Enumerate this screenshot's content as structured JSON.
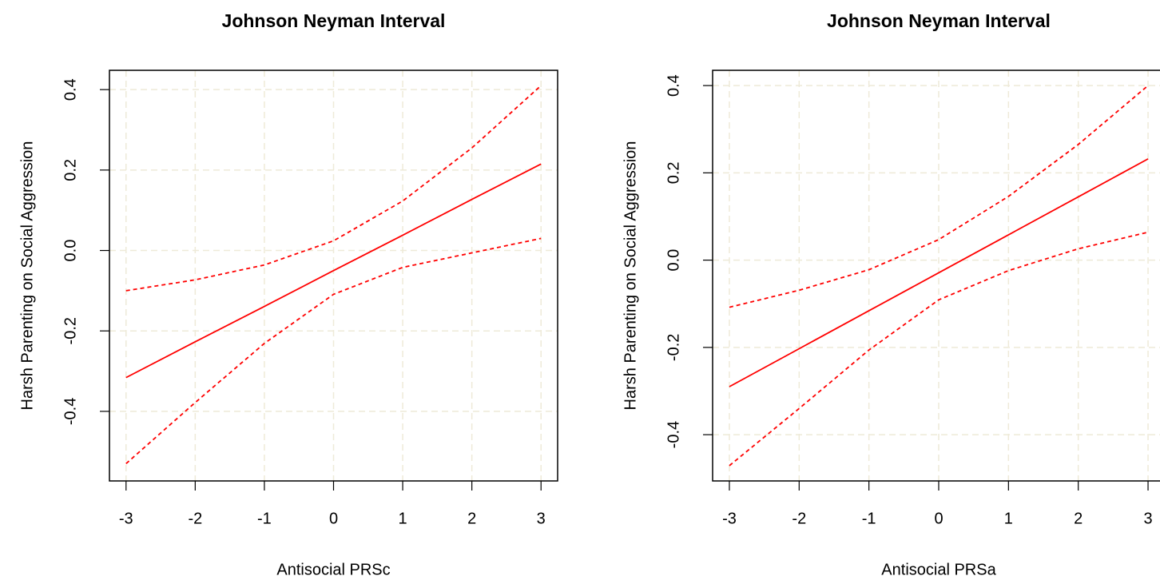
{
  "chart_data": [
    {
      "type": "line",
      "title": "Johnson Neyman Interval",
      "xlabel": "Antisocial PRSc",
      "ylabel": "Harsh Parenting on Social Aggression",
      "x": [
        -3,
        -2,
        -1,
        0,
        1,
        2,
        3
      ],
      "series": [
        {
          "color": "#ff0000",
          "linestyle": "solid",
          "values": [
            -0.316,
            -0.227,
            -0.139,
            -0.05,
            0.038,
            0.127,
            0.215
          ]
        },
        {
          "color": "#ff0000",
          "linestyle": "dashed",
          "values": [
            -0.1,
            -0.073,
            -0.036,
            0.024,
            0.123,
            0.255,
            0.41
          ]
        },
        {
          "color": "#ff0000",
          "linestyle": "dashed",
          "values": [
            -0.53,
            -0.378,
            -0.231,
            -0.109,
            -0.042,
            -0.006,
            0.03
          ]
        }
      ],
      "xlim": [
        -3.24,
        3.24
      ],
      "xticks": [
        -3,
        -2,
        -1,
        0,
        1,
        2,
        3
      ],
      "ylim": [
        -0.573,
        0.448
      ],
      "yticks": [
        -0.4,
        -0.2,
        {
          "value": 0,
          "label": "0.0"
        },
        0.2,
        0.4
      ],
      "grid": true
    },
    {
      "type": "line",
      "title": "Johnson Neyman Interval",
      "xlabel": "Antisocial PRSa",
      "ylabel": "Harsh Parenting on Social Aggression",
      "x": [
        -3,
        -2,
        -1,
        0,
        1,
        2,
        3
      ],
      "series": [
        {
          "color": "#ff0000",
          "linestyle": "solid",
          "values": [
            -0.29,
            -0.203,
            -0.116,
            -0.029,
            0.058,
            0.145,
            0.232
          ]
        },
        {
          "color": "#ff0000",
          "linestyle": "dashed",
          "values": [
            -0.108,
            -0.069,
            -0.022,
            0.047,
            0.146,
            0.265,
            0.4
          ]
        },
        {
          "color": "#ff0000",
          "linestyle": "dashed",
          "values": [
            -0.471,
            -0.34,
            -0.206,
            -0.091,
            -0.024,
            0.026,
            0.064
          ]
        }
      ],
      "xlim": [
        -3.24,
        3.24
      ],
      "xticks": [
        -3,
        -2,
        -1,
        0,
        1,
        2,
        3
      ],
      "ylim": [
        -0.506,
        0.435
      ],
      "yticks": [
        -0.4,
        -0.2,
        {
          "value": 0,
          "label": "0.0"
        },
        0.2,
        0.4
      ],
      "grid": true
    }
  ]
}
